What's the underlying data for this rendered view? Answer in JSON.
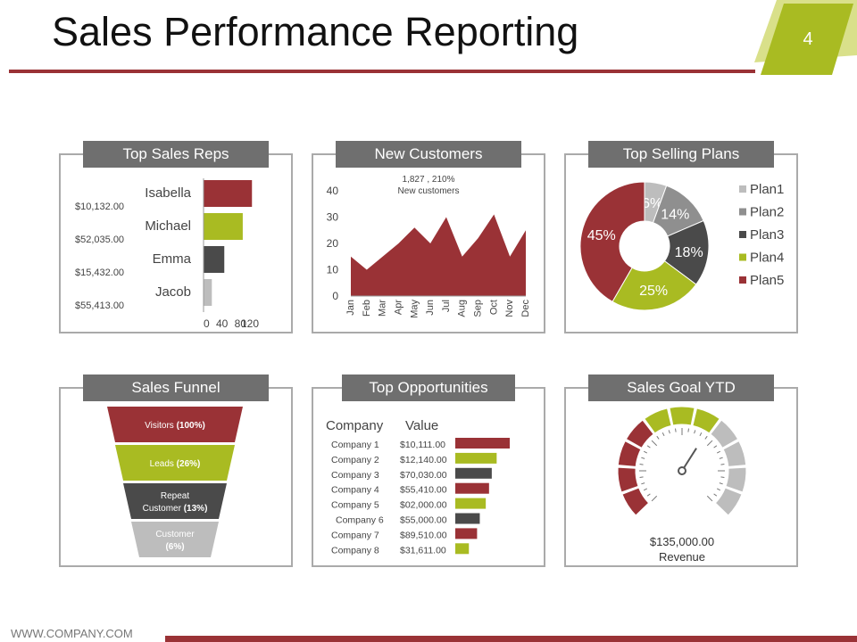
{
  "header": {
    "title": "Sales Performance Reporting",
    "page_number": "4"
  },
  "colors": {
    "red": "#9a3236",
    "green": "#a9bb22",
    "dark": "#4a4a4a",
    "gray": "#bdbdbd",
    "mid": "#8f8f8f",
    "panel_header": "#6f6f6f"
  },
  "footer": {
    "url": "WWW.COMPANY.COM"
  },
  "panels": {
    "top_sales_reps": "Top Sales Reps",
    "new_customers": "New Customers",
    "top_selling_plans": "Top Selling Plans",
    "sales_funnel": "Sales Funnel",
    "top_opportunities": "Top Opportunities",
    "sales_goal": "Sales Goal YTD"
  },
  "chart_data": [
    {
      "id": "reps",
      "type": "bar",
      "orientation": "horizontal",
      "title": "Top Sales Reps",
      "categories": [
        "Isabella",
        "Michael",
        "Emma",
        "Jacob"
      ],
      "values": [
        105,
        85,
        45,
        18
      ],
      "amounts": [
        "$10,132.00",
        "$52,035.00",
        "$15,432.00",
        "$55,413.00"
      ],
      "colors": [
        "#9a3236",
        "#a9bb22",
        "#4a4a4a",
        "#bdbdbd"
      ],
      "xlim": [
        0,
        120
      ],
      "xticks": [
        "0",
        "40",
        "80",
        "120"
      ]
    },
    {
      "id": "customers",
      "type": "area",
      "title": "New Customers",
      "annotation": [
        "1,827 , 210%",
        "New customers"
      ],
      "x": [
        "Jan",
        "Feb",
        "Mar",
        "Apr",
        "May",
        "Jun",
        "Jul",
        "Aug",
        "Sep",
        "Oct",
        "Nov",
        "Dec"
      ],
      "values": [
        15,
        10,
        15,
        20,
        26,
        20,
        30,
        15,
        22,
        31,
        15,
        25
      ],
      "ylim": [
        0,
        40
      ],
      "yticks": [
        "0",
        "10",
        "20",
        "30",
        "40"
      ]
    },
    {
      "id": "plans",
      "type": "pie",
      "title": "Top Selling Plans",
      "labels": [
        "Plan1",
        "Plan2",
        "Plan3",
        "Plan4",
        "Plan5"
      ],
      "values": [
        6,
        14,
        18,
        25,
        45
      ],
      "value_labels": [
        "6%",
        "14%",
        "18%",
        "25%",
        "45%"
      ],
      "colors": [
        "#bdbdbd",
        "#8f8f8f",
        "#4a4a4a",
        "#a9bb22",
        "#9a3236"
      ]
    },
    {
      "id": "funnel",
      "type": "funnel",
      "title": "Sales Funnel",
      "stages": [
        {
          "label": "Visitors",
          "pct": "(100%)",
          "value": 100,
          "color": "#9a3236"
        },
        {
          "label": "Leads",
          "pct": "(26%)",
          "value": 26,
          "color": "#a9bb22"
        },
        {
          "label": "Repeat Customer",
          "pct": "(13%)",
          "value": 13,
          "color": "#4a4a4a"
        },
        {
          "label": "Customer",
          "pct": "(6%)",
          "value": 6,
          "color": "#bdbdbd"
        }
      ]
    },
    {
      "id": "opps",
      "type": "bar",
      "orientation": "horizontal",
      "title": "Top Opportunities",
      "headers": [
        "Company",
        "Value"
      ],
      "categories": [
        "Company 1",
        "Company 2",
        "Company 3",
        "Company 4",
        "Company 5",
        "Company 6",
        "Company 7",
        "Company 8"
      ],
      "amounts": [
        "$10,111.00",
        "$12,140.00",
        "$70,030.00",
        "$55,410.00",
        "$02,000.00",
        "$55,000.00",
        "$89,510.00",
        "$31,611.00"
      ],
      "values": [
        100,
        76,
        67,
        62,
        56,
        45,
        40,
        25
      ],
      "colors": [
        "#9a3236",
        "#a9bb22",
        "#4a4a4a",
        "#9a3236",
        "#a9bb22",
        "#4a4a4a",
        "#9a3236",
        "#a9bb22"
      ]
    },
    {
      "id": "goal",
      "type": "gauge",
      "title": "Sales Goal YTD",
      "amount": "$135,000.00",
      "label": "Revenue",
      "segments": [
        "#9a3236",
        "#9a3236",
        "#9a3236",
        "#9a3236",
        "#a9bb22",
        "#a9bb22",
        "#a9bb22",
        "#bdbdbd",
        "#bdbdbd",
        "#bdbdbd",
        "#bdbdbd"
      ],
      "needle_fraction": 0.62
    }
  ]
}
